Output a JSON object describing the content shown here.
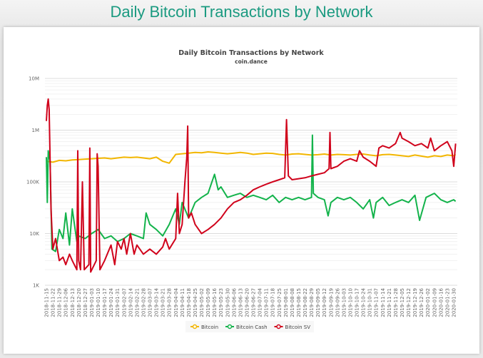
{
  "page": {
    "title": "Daily Bitcoin Transactions by Network"
  },
  "chart_data": {
    "type": "line",
    "title": "Daily Bitcoin Transactions by Network",
    "subtitle": "coin.dance",
    "y_scale": "log",
    "ylim": [
      1000,
      10000000
    ],
    "y_ticks": [
      {
        "v": 1000,
        "label": "1K"
      },
      {
        "v": 10000,
        "label": "10K"
      },
      {
        "v": 100000,
        "label": "100K"
      },
      {
        "v": 1000000,
        "label": "1M"
      },
      {
        "v": 10000000,
        "label": "10M"
      }
    ],
    "xlim": [
      "2018-11-15",
      "2020-02-01"
    ],
    "x_ticks": [
      "2018-11-15",
      "2018-11-22",
      "2018-11-29",
      "2018-12-06",
      "2018-12-13",
      "2018-12-20",
      "2018-12-27",
      "2019-01-03",
      "2019-01-10",
      "2019-01-17",
      "2019-01-24",
      "2019-01-31",
      "2019-02-07",
      "2019-02-14",
      "2019-02-21",
      "2019-02-28",
      "2019-03-07",
      "2019-03-14",
      "2019-03-21",
      "2019-03-28",
      "2019-04-04",
      "2019-04-11",
      "2019-04-18",
      "2019-04-25",
      "2019-05-02",
      "2019-05-09",
      "2019-05-16",
      "2019-05-23",
      "2019-05-30",
      "2019-06-06",
      "2019-06-13",
      "2019-06-20",
      "2019-06-27",
      "2019-07-04",
      "2019-07-11",
      "2019-07-18",
      "2019-07-25",
      "2019-08-01",
      "2019-08-08",
      "2019-08-15",
      "2019-08-22",
      "2019-08-29",
      "2019-09-05",
      "2019-09-12",
      "2019-09-19",
      "2019-09-26",
      "2019-10-03",
      "2019-10-10",
      "2019-10-17",
      "2019-10-24",
      "2019-10-31",
      "2019-11-07",
      "2019-11-14",
      "2019-11-21",
      "2019-11-28",
      "2019-12-05",
      "2019-12-12",
      "2019-12-19",
      "2019-12-26",
      "2020-01-02",
      "2020-01-09",
      "2020-01-16",
      "2020-01-23",
      "2020-01-30"
    ],
    "grid": true,
    "legend": "bottom-center",
    "series": [
      {
        "name": "Bitcoin",
        "color": "#f2b600",
        "points": [
          [
            "2018-11-15",
            250000
          ],
          [
            "2018-11-22",
            240000
          ],
          [
            "2018-11-29",
            260000
          ],
          [
            "2018-12-06",
            255000
          ],
          [
            "2018-12-13",
            265000
          ],
          [
            "2018-12-20",
            270000
          ],
          [
            "2018-12-27",
            275000
          ],
          [
            "2019-01-03",
            280000
          ],
          [
            "2019-01-10",
            285000
          ],
          [
            "2019-01-17",
            290000
          ],
          [
            "2019-01-24",
            280000
          ],
          [
            "2019-01-31",
            290000
          ],
          [
            "2019-02-07",
            300000
          ],
          [
            "2019-02-14",
            295000
          ],
          [
            "2019-02-21",
            300000
          ],
          [
            "2019-02-28",
            290000
          ],
          [
            "2019-03-07",
            280000
          ],
          [
            "2019-03-14",
            300000
          ],
          [
            "2019-03-21",
            250000
          ],
          [
            "2019-03-28",
            230000
          ],
          [
            "2019-04-04",
            340000
          ],
          [
            "2019-04-11",
            350000
          ],
          [
            "2019-04-18",
            360000
          ],
          [
            "2019-04-25",
            370000
          ],
          [
            "2019-05-02",
            365000
          ],
          [
            "2019-05-09",
            380000
          ],
          [
            "2019-05-16",
            370000
          ],
          [
            "2019-05-23",
            360000
          ],
          [
            "2019-05-30",
            350000
          ],
          [
            "2019-06-06",
            360000
          ],
          [
            "2019-06-13",
            370000
          ],
          [
            "2019-06-20",
            360000
          ],
          [
            "2019-06-27",
            340000
          ],
          [
            "2019-07-04",
            350000
          ],
          [
            "2019-07-11",
            360000
          ],
          [
            "2019-07-18",
            355000
          ],
          [
            "2019-07-25",
            340000
          ],
          [
            "2019-08-01",
            330000
          ],
          [
            "2019-08-08",
            345000
          ],
          [
            "2019-08-15",
            350000
          ],
          [
            "2019-08-22",
            340000
          ],
          [
            "2019-08-29",
            330000
          ],
          [
            "2019-09-05",
            335000
          ],
          [
            "2019-09-12",
            345000
          ],
          [
            "2019-09-19",
            330000
          ],
          [
            "2019-09-26",
            340000
          ],
          [
            "2019-10-03",
            335000
          ],
          [
            "2019-10-10",
            330000
          ],
          [
            "2019-10-17",
            340000
          ],
          [
            "2019-10-24",
            345000
          ],
          [
            "2019-10-31",
            330000
          ],
          [
            "2019-11-07",
            320000
          ],
          [
            "2019-11-14",
            335000
          ],
          [
            "2019-11-21",
            340000
          ],
          [
            "2019-11-28",
            330000
          ],
          [
            "2019-12-05",
            320000
          ],
          [
            "2019-12-12",
            310000
          ],
          [
            "2019-12-19",
            330000
          ],
          [
            "2019-12-26",
            315000
          ],
          [
            "2020-01-02",
            300000
          ],
          [
            "2020-01-09",
            320000
          ],
          [
            "2020-01-16",
            310000
          ],
          [
            "2020-01-23",
            330000
          ],
          [
            "2020-01-30",
            320000
          ],
          [
            "2020-02-01",
            340000
          ]
        ]
      },
      {
        "name": "Bitcoin Cash",
        "color": "#13b34b",
        "points": [
          [
            "2018-11-15",
            300000
          ],
          [
            "2018-11-16",
            40000
          ],
          [
            "2018-11-17",
            400000
          ],
          [
            "2018-11-19",
            250000
          ],
          [
            "2018-11-21",
            5000
          ],
          [
            "2018-11-25",
            4500
          ],
          [
            "2018-11-29",
            12000
          ],
          [
            "2018-12-03",
            8000
          ],
          [
            "2018-12-06",
            25000
          ],
          [
            "2018-12-10",
            6000
          ],
          [
            "2018-12-13",
            30000
          ],
          [
            "2018-12-18",
            7000
          ],
          [
            "2018-12-20",
            9000
          ],
          [
            "2018-12-27",
            8000
          ],
          [
            "2019-01-03",
            10000
          ],
          [
            "2019-01-10",
            12000
          ],
          [
            "2019-01-17",
            8000
          ],
          [
            "2019-01-24",
            9000
          ],
          [
            "2019-01-31",
            7000
          ],
          [
            "2019-02-07",
            8000
          ],
          [
            "2019-02-14",
            10000
          ],
          [
            "2019-02-21",
            9000
          ],
          [
            "2019-02-28",
            8000
          ],
          [
            "2019-03-03",
            25000
          ],
          [
            "2019-03-07",
            15000
          ],
          [
            "2019-03-14",
            12000
          ],
          [
            "2019-03-21",
            9000
          ],
          [
            "2019-03-28",
            15000
          ],
          [
            "2019-04-04",
            30000
          ],
          [
            "2019-04-08",
            15000
          ],
          [
            "2019-04-11",
            40000
          ],
          [
            "2019-04-18",
            20000
          ],
          [
            "2019-04-25",
            40000
          ],
          [
            "2019-05-02",
            50000
          ],
          [
            "2019-05-09",
            60000
          ],
          [
            "2019-05-16",
            140000
          ],
          [
            "2019-05-20",
            70000
          ],
          [
            "2019-05-23",
            80000
          ],
          [
            "2019-05-30",
            50000
          ],
          [
            "2019-06-06",
            55000
          ],
          [
            "2019-06-13",
            60000
          ],
          [
            "2019-06-20",
            50000
          ],
          [
            "2019-06-27",
            55000
          ],
          [
            "2019-07-04",
            50000
          ],
          [
            "2019-07-11",
            45000
          ],
          [
            "2019-07-18",
            55000
          ],
          [
            "2019-07-25",
            40000
          ],
          [
            "2019-08-01",
            50000
          ],
          [
            "2019-08-08",
            45000
          ],
          [
            "2019-08-15",
            50000
          ],
          [
            "2019-08-22",
            45000
          ],
          [
            "2019-08-29",
            50000
          ],
          [
            "2019-08-30",
            800000
          ],
          [
            "2019-08-31",
            60000
          ],
          [
            "2019-09-05",
            50000
          ],
          [
            "2019-09-12",
            45000
          ],
          [
            "2019-09-16",
            22000
          ],
          [
            "2019-09-19",
            40000
          ],
          [
            "2019-09-26",
            50000
          ],
          [
            "2019-10-03",
            45000
          ],
          [
            "2019-10-10",
            50000
          ],
          [
            "2019-10-17",
            40000
          ],
          [
            "2019-10-24",
            30000
          ],
          [
            "2019-10-31",
            45000
          ],
          [
            "2019-11-04",
            20000
          ],
          [
            "2019-11-07",
            40000
          ],
          [
            "2019-11-14",
            50000
          ],
          [
            "2019-11-21",
            35000
          ],
          [
            "2019-11-28",
            40000
          ],
          [
            "2019-12-05",
            45000
          ],
          [
            "2019-12-12",
            40000
          ],
          [
            "2019-12-19",
            55000
          ],
          [
            "2019-12-24",
            18000
          ],
          [
            "2019-12-31",
            50000
          ],
          [
            "2020-01-09",
            60000
          ],
          [
            "2020-01-16",
            45000
          ],
          [
            "2020-01-23",
            40000
          ],
          [
            "2020-01-30",
            45000
          ],
          [
            "2020-02-01",
            42000
          ]
        ]
      },
      {
        "name": "Bitcoin SV",
        "color": "#d0021b",
        "points": [
          [
            "2018-11-15",
            1500000
          ],
          [
            "2018-11-16",
            3000000
          ],
          [
            "2018-11-17",
            4000000
          ],
          [
            "2018-11-18",
            2500000
          ],
          [
            "2018-11-20",
            30000
          ],
          [
            "2018-11-22",
            5000
          ],
          [
            "2018-11-25",
            8000
          ],
          [
            "2018-11-29",
            3000
          ],
          [
            "2018-12-03",
            3500
          ],
          [
            "2018-12-06",
            2500
          ],
          [
            "2018-12-10",
            4000
          ],
          [
            "2018-12-13",
            3000
          ],
          [
            "2018-12-18",
            2000
          ],
          [
            "2018-12-19",
            400000
          ],
          [
            "2018-12-20",
            3000
          ],
          [
            "2018-12-22",
            2000
          ],
          [
            "2018-12-24",
            100000
          ],
          [
            "2018-12-26",
            2000
          ],
          [
            "2018-12-31",
            2500
          ],
          [
            "2019-01-01",
            450000
          ],
          [
            "2019-01-02",
            1800
          ],
          [
            "2019-01-08",
            3000
          ],
          [
            "2019-01-09",
            350000
          ],
          [
            "2019-01-10",
            200000
          ],
          [
            "2019-01-12",
            2000
          ],
          [
            "2019-01-17",
            3000
          ],
          [
            "2019-01-24",
            6000
          ],
          [
            "2019-01-28",
            2500
          ],
          [
            "2019-01-31",
            7000
          ],
          [
            "2019-02-04",
            5000
          ],
          [
            "2019-02-07",
            8000
          ],
          [
            "2019-02-10",
            4000
          ],
          [
            "2019-02-14",
            10000
          ],
          [
            "2019-02-18",
            4000
          ],
          [
            "2019-02-21",
            6000
          ],
          [
            "2019-02-28",
            4000
          ],
          [
            "2019-03-07",
            5000
          ],
          [
            "2019-03-14",
            4000
          ],
          [
            "2019-03-21",
            5500
          ],
          [
            "2019-03-24",
            8000
          ],
          [
            "2019-03-28",
            5000
          ],
          [
            "2019-04-04",
            8000
          ],
          [
            "2019-04-06",
            60000
          ],
          [
            "2019-04-08",
            10000
          ],
          [
            "2019-04-11",
            15000
          ],
          [
            "2019-04-14",
            100000
          ],
          [
            "2019-04-16",
            300000
          ],
          [
            "2019-04-17",
            1200000
          ],
          [
            "2019-04-18",
            20000
          ],
          [
            "2019-04-21",
            25000
          ],
          [
            "2019-04-25",
            15000
          ],
          [
            "2019-05-02",
            10000
          ],
          [
            "2019-05-09",
            12000
          ],
          [
            "2019-05-16",
            15000
          ],
          [
            "2019-05-23",
            20000
          ],
          [
            "2019-05-30",
            30000
          ],
          [
            "2019-06-06",
            40000
          ],
          [
            "2019-06-13",
            45000
          ],
          [
            "2019-06-20",
            55000
          ],
          [
            "2019-06-27",
            70000
          ],
          [
            "2019-07-04",
            80000
          ],
          [
            "2019-07-11",
            90000
          ],
          [
            "2019-07-18",
            100000
          ],
          [
            "2019-07-25",
            110000
          ],
          [
            "2019-07-31",
            120000
          ],
          [
            "2019-08-02",
            1600000
          ],
          [
            "2019-08-04",
            130000
          ],
          [
            "2019-08-08",
            110000
          ],
          [
            "2019-08-15",
            115000
          ],
          [
            "2019-08-22",
            120000
          ],
          [
            "2019-08-29",
            130000
          ],
          [
            "2019-09-05",
            140000
          ],
          [
            "2019-09-12",
            150000
          ],
          [
            "2019-09-17",
            180000
          ],
          [
            "2019-09-18",
            900000
          ],
          [
            "2019-09-19",
            180000
          ],
          [
            "2019-09-26",
            200000
          ],
          [
            "2019-10-03",
            250000
          ],
          [
            "2019-10-10",
            280000
          ],
          [
            "2019-10-17",
            250000
          ],
          [
            "2019-10-20",
            400000
          ],
          [
            "2019-10-24",
            300000
          ],
          [
            "2019-10-31",
            250000
          ],
          [
            "2019-11-07",
            200000
          ],
          [
            "2019-11-10",
            450000
          ],
          [
            "2019-11-14",
            500000
          ],
          [
            "2019-11-21",
            450000
          ],
          [
            "2019-11-28",
            550000
          ],
          [
            "2019-12-03",
            900000
          ],
          [
            "2019-12-05",
            700000
          ],
          [
            "2019-12-12",
            600000
          ],
          [
            "2019-12-19",
            500000
          ],
          [
            "2019-12-26",
            550000
          ],
          [
            "2020-01-02",
            450000
          ],
          [
            "2020-01-05",
            700000
          ],
          [
            "2020-01-09",
            400000
          ],
          [
            "2020-01-16",
            500000
          ],
          [
            "2020-01-23",
            600000
          ],
          [
            "2020-01-28",
            400000
          ],
          [
            "2020-01-30",
            200000
          ],
          [
            "2020-02-01",
            550000
          ]
        ]
      }
    ]
  }
}
